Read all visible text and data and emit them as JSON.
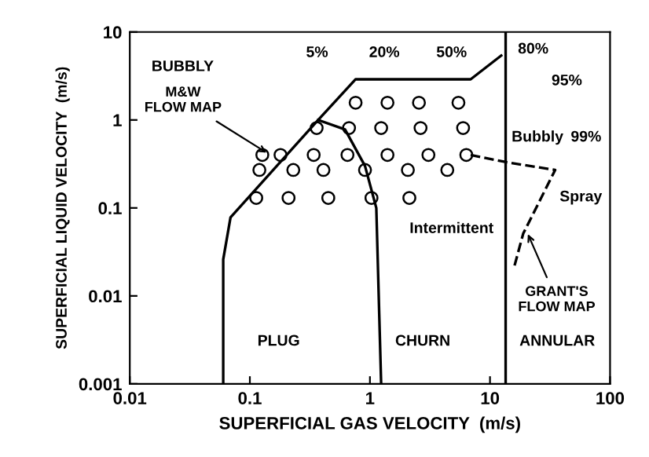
{
  "chart_data": {
    "type": "line",
    "xlabel": "SUPERFICIAL GAS VELOCITY  (m/s)",
    "ylabel": "SUPERFICIAL LIQUID VELOCITY  (m/s)",
    "log": "xy",
    "grid": false,
    "legend": false,
    "xlim": [
      0.01,
      100
    ],
    "ylim": [
      0.001,
      10
    ],
    "xticks": [
      0.01,
      0.1,
      1,
      10,
      100
    ],
    "yticks": [
      0.001,
      0.01,
      0.1,
      1,
      10
    ],
    "series": [
      {
        "color": "#000000",
        "line_style": "solid",
        "x": [
          0.06,
          0.06,
          0.069,
          0.37,
          0.76,
          6.9,
          12.4
        ],
        "values": [
          0.001,
          0.026,
          0.078,
          1.0,
          2.9,
          2.9,
          5.4
        ]
      },
      {
        "color": "#000000",
        "line_style": "solid",
        "x": [
          0.37,
          0.62,
          0.91,
          1.13,
          1.24
        ],
        "values": [
          1.0,
          0.78,
          0.3,
          0.1,
          0.001
        ]
      },
      {
        "color": "#000000",
        "line_style": "solid",
        "x": [
          13.5,
          13.5
        ],
        "values": [
          0.001,
          10
        ]
      },
      {
        "color": "#000000",
        "line_style": "dashed",
        "x": [
          6.9,
          13.9,
          34.9,
          18.9,
          15.7
        ],
        "values": [
          0.4,
          0.33,
          0.27,
          0.051,
          0.02
        ]
      },
      {
        "type": "scatter",
        "color": "#000000",
        "marker": "circle",
        "x": [
          0.76,
          1.4,
          2.56,
          5.46,
          0.36,
          0.67,
          1.24,
          2.64,
          5.97,
          0.127,
          0.18,
          0.34,
          0.65,
          1.4,
          3.07,
          6.35,
          0.12,
          0.23,
          0.41,
          0.91,
          2.07,
          4.41,
          0.113,
          0.21,
          0.45,
          1.03,
          2.13
        ],
        "values": [
          1.57,
          1.57,
          1.57,
          1.57,
          0.81,
          0.81,
          0.81,
          0.81,
          0.81,
          0.4,
          0.4,
          0.4,
          0.4,
          0.4,
          0.4,
          0.4,
          0.27,
          0.27,
          0.27,
          0.27,
          0.27,
          0.27,
          0.13,
          0.13,
          0.13,
          0.13,
          0.13
        ]
      }
    ],
    "annotations": [
      "BUBBLY",
      {
        "text": "M&W\nFLOW MAP",
        "x": 0.148,
        "y": 0.4
      },
      "5%",
      "20%",
      "50%",
      "80%",
      "95%",
      "Bubbly",
      "99%",
      "Spray",
      "Intermittent",
      {
        "text": "GRANT'S\nFLOW MAP",
        "x": 20,
        "y": 0.056
      },
      "PLUG",
      "CHURN",
      "ANNULAR"
    ]
  }
}
